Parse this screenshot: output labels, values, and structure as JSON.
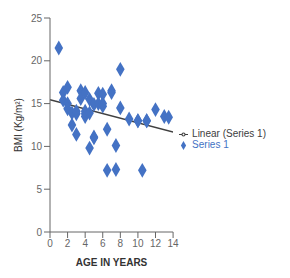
{
  "chart_data": {
    "type": "scatter",
    "xlabel": "AGE  IN YEARS",
    "ylabel": "BMI (Kg/m²)",
    "xlim": [
      0,
      14
    ],
    "ylim": [
      0,
      25
    ],
    "xticks": [
      0,
      2,
      4,
      6,
      8,
      10,
      12,
      14
    ],
    "yticks": [
      0,
      5,
      10,
      15,
      20,
      25
    ],
    "grid": false,
    "legend": "right",
    "series": [
      {
        "name": "Series 1",
        "type": "scatter",
        "color": "#4472C4",
        "marker": "diamond",
        "x": [
          1,
          1.5,
          1.5,
          2,
          2,
          2,
          2.5,
          2.5,
          3,
          3,
          3,
          3.5,
          3.5,
          4,
          4,
          4,
          4,
          4.5,
          4.5,
          4.5,
          5,
          5,
          5,
          5.5,
          5.5,
          6,
          6,
          6,
          6.5,
          6.5,
          7,
          7,
          7.5,
          7.5,
          8,
          8,
          9,
          10,
          10,
          10.5,
          11,
          11,
          12,
          13,
          13.5
        ],
        "values": [
          21.5,
          16.3,
          15.4,
          16.9,
          15.0,
          14.4,
          13.9,
          12.5,
          13.8,
          14.1,
          11.4,
          16.5,
          15.6,
          16.3,
          14.1,
          13.8,
          13.5,
          15.5,
          13.9,
          9.8,
          14.9,
          11.1,
          11.0,
          16.2,
          15.0,
          16.1,
          15.0,
          14.7,
          7.2,
          12.0,
          16.5,
          16.3,
          10.1,
          7.3,
          14.5,
          19.0,
          13.2,
          13.0,
          13.0,
          7.2,
          13.0,
          13.0,
          14.3,
          13.5,
          13.4
        ]
      },
      {
        "name": "Linear (Series 1)",
        "type": "line",
        "color": "#404040",
        "line_style": "solid",
        "x": [
          0,
          14
        ],
        "values": [
          15.4496,
          11.6879
        ]
      }
    ]
  }
}
